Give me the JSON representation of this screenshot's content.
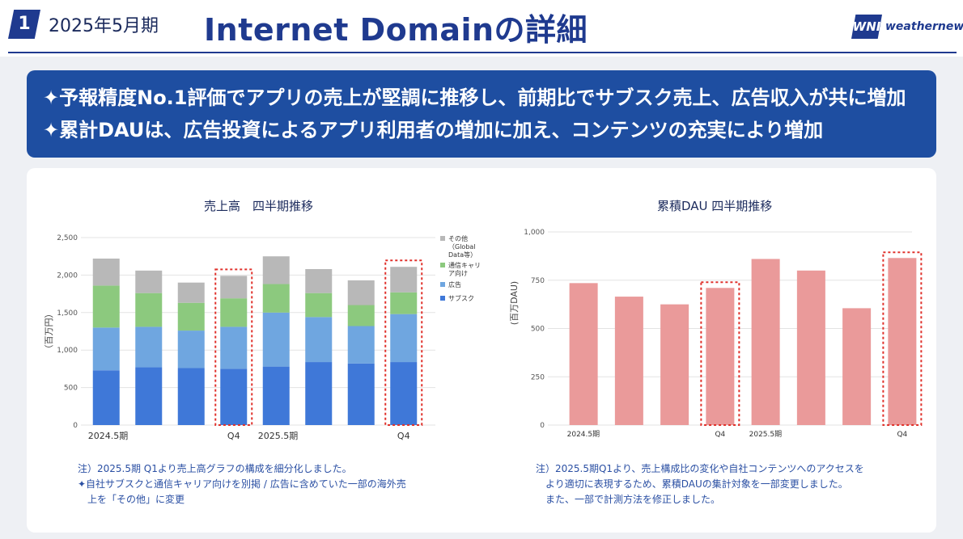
{
  "header": {
    "badge": "1",
    "period": "2025年5月期",
    "title": "Internet Domainの詳細",
    "logo_mark": "WNI",
    "logo_text": "weathernews"
  },
  "banner": {
    "line1": "✦予報精度No.1評価でアプリの売上が堅調に推移し、前期比でサブスク売上、広告収入が共に増加",
    "line2": "✦累計DAUは、広告投資によるアプリ利用者の増加に加え、コンテンツの充実により増加"
  },
  "chart_data": [
    {
      "type": "bar",
      "title": "売上高　四半期推移",
      "ylabel": "（百万円）",
      "stacked": true,
      "ylim": [
        0,
        2500
      ],
      "yticks": [
        "0",
        "500",
        "1,000",
        "1,500",
        "2,000",
        "2,500"
      ],
      "xtick_labels": [
        "2024.5期",
        "",
        "",
        "Q4",
        "2025.5期",
        "",
        "",
        "Q4"
      ],
      "highlighted": [
        3,
        7
      ],
      "series": [
        {
          "name": "サブスク",
          "color": "#3f78d8",
          "values": [
            730,
            770,
            760,
            750,
            780,
            840,
            820,
            840
          ]
        },
        {
          "name": "広告",
          "color": "#6fa6e0",
          "values": [
            570,
            540,
            500,
            560,
            720,
            600,
            500,
            640
          ]
        },
        {
          "name": "通信キャリア向け",
          "color": "#8cc97e",
          "values": [
            560,
            450,
            370,
            380,
            380,
            320,
            280,
            290
          ]
        },
        {
          "name": "その他（Global Data等）",
          "color": "#b8b8b8",
          "values": [
            360,
            300,
            270,
            300,
            370,
            320,
            330,
            340
          ]
        }
      ],
      "legend": [
        {
          "label": "その他",
          "sub": "（Global",
          "sub2": "Data等）",
          "color": "#b8b8b8"
        },
        {
          "label": "通信キャリ",
          "sub": "ア向け",
          "sub2": "",
          "color": "#8cc97e"
        },
        {
          "label": "広告",
          "sub": "",
          "sub2": "",
          "color": "#6fa6e0"
        },
        {
          "label": "サブスク",
          "sub": "",
          "sub2": "",
          "color": "#3f78d8"
        }
      ]
    },
    {
      "type": "bar",
      "title": "累積DAU 四半期推移",
      "ylabel": "(百万DAU)",
      "ylim": [
        0,
        1000
      ],
      "yticks": [
        "0",
        "250",
        "500",
        "750",
        "1,000"
      ],
      "xtick_labels": [
        "2024.5期",
        "",
        "",
        "Q4",
        "2025.5期",
        "",
        "",
        "Q4"
      ],
      "highlighted": [
        3,
        7
      ],
      "color": "#ea9a9a",
      "values": [
        735,
        665,
        625,
        710,
        860,
        800,
        605,
        865
      ]
    }
  ],
  "notes": {
    "left": [
      "注）2025.5期 Q1より売上高グラフの構成を細分化しました。",
      "✦自社サブスクと通信キャリア向けを別掲 / 広告に含めていた一部の海外売",
      "　上を「その他」に変更"
    ],
    "right": [
      "注）2025.5期Q1より、売上構成比の変化や自社コンテンツへのアクセスを",
      "　より適切に表現するため、累積DAUの集計対象を一部変更しました。",
      "　また、一部で計測方法を修正しました。"
    ]
  }
}
